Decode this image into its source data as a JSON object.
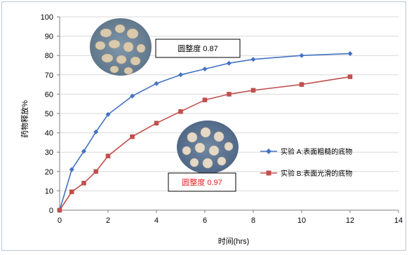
{
  "chart_data": {
    "type": "line",
    "title": "",
    "xlabel": "时间(hrs)",
    "ylabel": "药物释放%",
    "xlim": [
      0,
      14
    ],
    "ylim": [
      0,
      100
    ],
    "x_ticks": [
      0,
      2,
      4,
      6,
      8,
      10,
      12,
      14
    ],
    "y_ticks": [
      0,
      10,
      20,
      30,
      40,
      50,
      60,
      70,
      80,
      90,
      100
    ],
    "grid": "horizontal",
    "legend_position": "right",
    "series": [
      {
        "name": "实验 A:表面粗糙的底物",
        "color": "#4472c4",
        "marker": "diamond",
        "x": [
          0,
          0.5,
          1,
          1.5,
          2,
          3,
          4,
          5,
          6,
          7,
          8,
          10,
          12
        ],
        "y": [
          0,
          21,
          30.5,
          40.5,
          49.5,
          59,
          65.5,
          70,
          73,
          76,
          78,
          80,
          81
        ]
      },
      {
        "name": "实验 B:表面光滑的底物",
        "color": "#c0504d",
        "marker": "square",
        "x": [
          0,
          0.5,
          1,
          1.5,
          2,
          3,
          4,
          5,
          6,
          7,
          8,
          10,
          12
        ],
        "y": [
          0,
          9.5,
          14,
          20,
          28,
          38,
          45,
          51,
          57,
          60,
          62,
          65,
          69
        ]
      }
    ],
    "annotations": [
      {
        "text": "圆整度 0.87",
        "color": "#000000"
      },
      {
        "text": "圆整度 0.97",
        "color": "#e02020"
      }
    ]
  }
}
